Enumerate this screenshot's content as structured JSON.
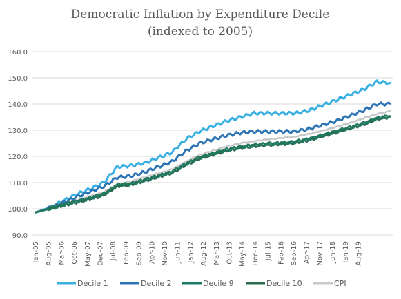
{
  "chart_data": {
    "type": "line",
    "title": "Democratic Inflation by Expenditure Decile",
    "subtitle": "(indexed to 2005)",
    "ylim": [
      90,
      160
    ],
    "yticks": [
      "90.0",
      "100.0",
      "110.0",
      "120.0",
      "130.0",
      "140.0",
      "150.0",
      "160.0"
    ],
    "xticks": [
      "Jan-05",
      "Aug-05",
      "Mar-06",
      "Oct-06",
      "May-07",
      "Dec-07",
      "Jul-08",
      "Feb-09",
      "Sep-09",
      "Apr-10",
      "Nov-10",
      "Jun-11",
      "Jan-12",
      "Aug-12",
      "Mar-13",
      "Oct-13",
      "May-14",
      "Dec-14",
      "Jul-15",
      "Feb-16",
      "Sep-16",
      "Apr-17",
      "Nov-17",
      "Jun-18",
      "Jan-19",
      "Aug-19"
    ],
    "grid": true,
    "legend_position": "bottom",
    "x_knots": [
      "Jan-05",
      "Aug-05",
      "Mar-06",
      "Oct-06",
      "May-07",
      "Dec-07",
      "Jul-08",
      "Feb-09",
      "Sep-09",
      "Apr-10",
      "Nov-10",
      "Jun-11",
      "Jan-12",
      "Aug-12",
      "Mar-13",
      "Oct-13",
      "May-14",
      "Dec-14",
      "Jul-15",
      "Feb-16",
      "Sep-16",
      "Apr-17",
      "Nov-17",
      "Jun-18",
      "Jan-19",
      "Aug-19",
      "Jan-20"
    ],
    "series": [
      {
        "name": "Decile 1",
        "color": "#3ab0e2",
        "values": [
          98.6,
          100.3,
          102.8,
          105.5,
          107.5,
          110.0,
          116.0,
          116.5,
          117.5,
          119.5,
          121.5,
          126.5,
          129.5,
          131.5,
          133.5,
          135.0,
          136.5,
          136.5,
          136.5,
          136.5,
          137.5,
          139.5,
          141.5,
          143.5,
          145.5,
          148.5,
          148.0
        ]
      },
      {
        "name": "Decile 2",
        "color": "#2e75b6",
        "values": [
          98.6,
          100.2,
          102.2,
          104.5,
          106.5,
          108.5,
          112.0,
          112.5,
          114.0,
          116.0,
          118.0,
          122.0,
          125.0,
          126.5,
          128.0,
          129.0,
          129.5,
          129.5,
          129.5,
          129.5,
          130.5,
          132.0,
          133.5,
          135.5,
          137.5,
          140.0,
          140.0
        ]
      },
      {
        "name": "Decile 9",
        "color": "#1f7a63",
        "values": [
          98.6,
          100.0,
          101.5,
          102.8,
          104.0,
          105.5,
          109.0,
          109.5,
          111.0,
          112.5,
          114.0,
          117.0,
          119.5,
          121.0,
          122.5,
          123.5,
          124.3,
          124.8,
          125.0,
          125.5,
          126.5,
          128.0,
          129.5,
          131.0,
          132.5,
          134.5,
          135.5
        ]
      },
      {
        "name": "Decile 10",
        "color": "#2d6a4f",
        "values": [
          98.6,
          100.0,
          101.3,
          102.6,
          103.8,
          105.3,
          108.8,
          109.3,
          110.8,
          112.3,
          113.8,
          116.8,
          119.3,
          120.8,
          122.3,
          123.3,
          124.0,
          124.5,
          124.8,
          125.3,
          126.3,
          127.8,
          129.3,
          130.8,
          132.3,
          134.3,
          135.2
        ]
      },
      {
        "name": "CPI",
        "color": "#c8c8c8",
        "values": [
          98.6,
          100.0,
          101.8,
          103.0,
          104.8,
          106.3,
          109.2,
          110.5,
          112.0,
          113.5,
          115.0,
          118.0,
          120.5,
          122.2,
          123.8,
          125.0,
          125.8,
          126.5,
          127.0,
          127.5,
          128.5,
          129.8,
          131.2,
          132.8,
          134.5,
          136.2,
          137.3
        ]
      }
    ]
  }
}
